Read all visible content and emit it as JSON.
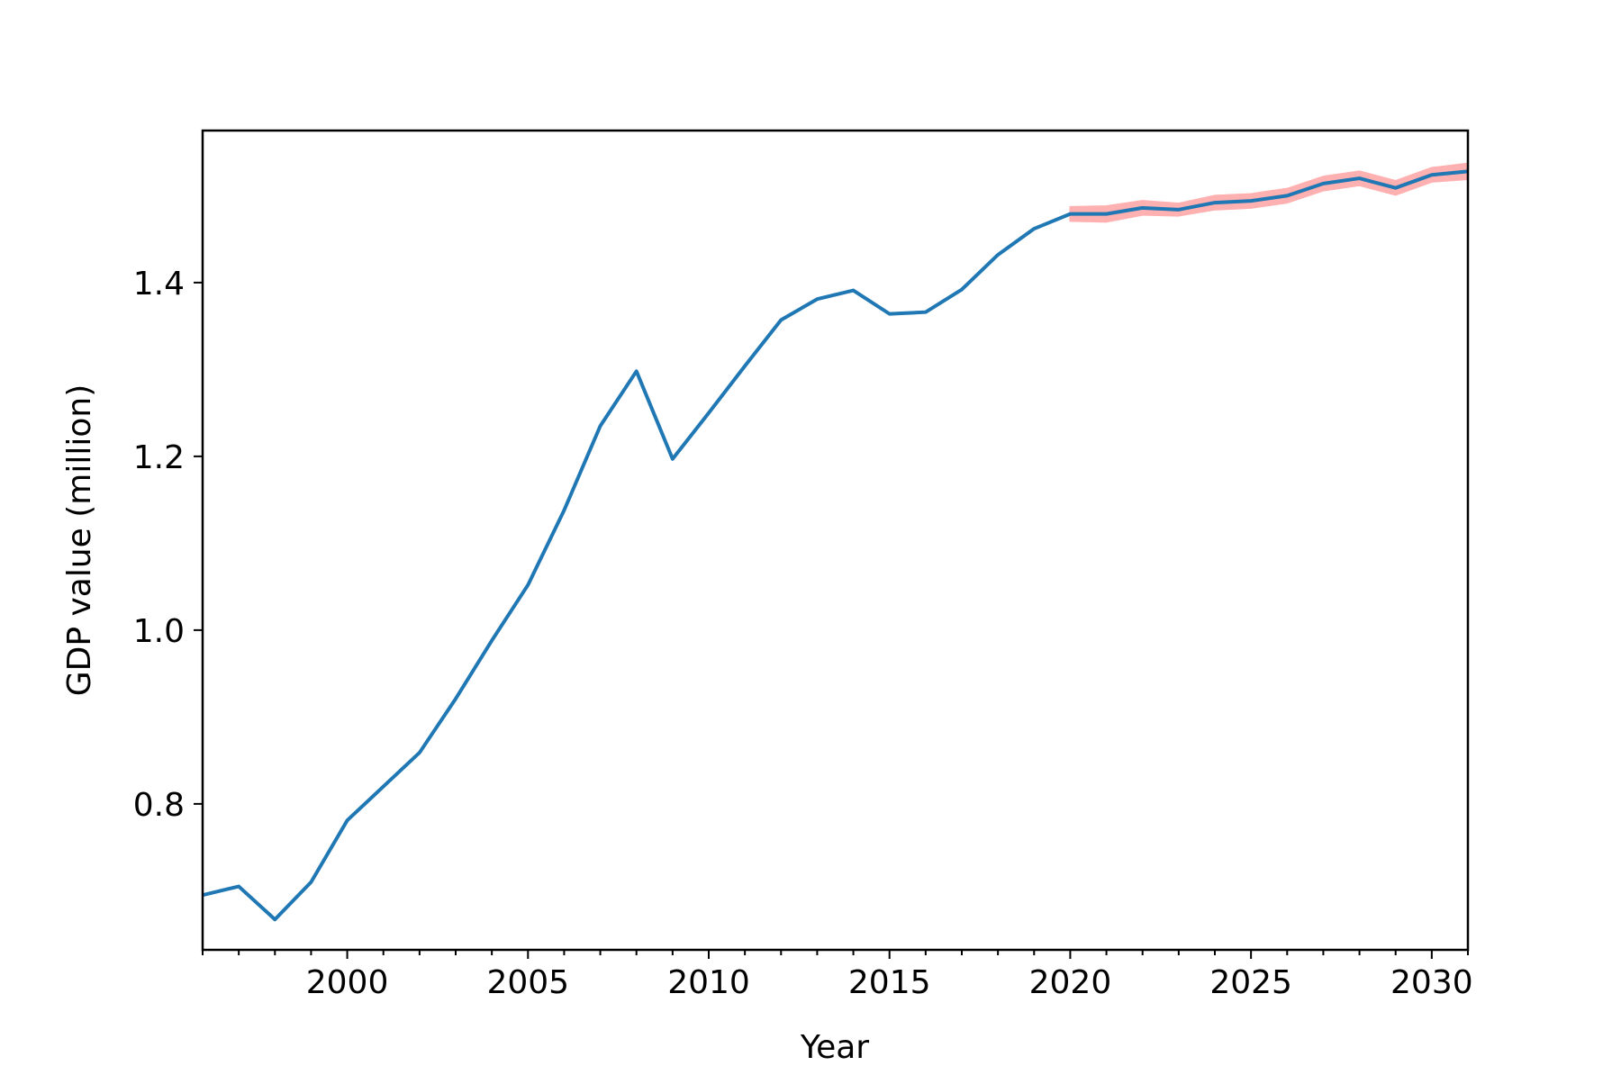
{
  "chart_data": {
    "type": "line",
    "title": "",
    "xlabel": "Year",
    "ylabel": "GDP value (million)",
    "xlim": [
      1996,
      2031
    ],
    "ylim": [
      0.632,
      1.575
    ],
    "xticks": [
      2000,
      2005,
      2010,
      2015,
      2020,
      2025,
      2030
    ],
    "yticks": [
      0.8,
      1.0,
      1.2,
      1.4
    ],
    "ytick_labels": [
      "0.8",
      "1.0",
      "1.2",
      "1.4"
    ],
    "grid": false,
    "legend": "none",
    "series": [
      {
        "color": "#1f77b4",
        "x": [
          1996,
          1997,
          1998,
          1999,
          2000,
          2001,
          2002,
          2003,
          2004,
          2005,
          2006,
          2007,
          2008,
          2009,
          2010,
          2011,
          2012,
          2013,
          2014,
          2015,
          2016,
          2017,
          2018,
          2019,
          2020,
          2021,
          2022,
          2023,
          2024,
          2025,
          2026,
          2027,
          2028,
          2029,
          2030,
          2031
        ],
        "y": [
          0.695,
          0.705,
          0.667,
          0.71,
          0.781,
          0.82,
          0.859,
          0.921,
          0.988,
          1.052,
          1.138,
          1.235,
          1.298,
          1.197,
          1.25,
          1.304,
          1.357,
          1.381,
          1.391,
          1.364,
          1.366,
          1.392,
          1.432,
          1.462,
          1.479,
          1.479,
          1.486,
          1.484,
          1.492,
          1.494,
          1.5,
          1.514,
          1.52,
          1.509,
          1.524,
          1.528
        ]
      }
    ],
    "band": {
      "color": "#ffb0b0",
      "x": [
        2020,
        2021,
        2022,
        2023,
        2024,
        2025,
        2026,
        2027,
        2028,
        2029,
        2030,
        2031
      ],
      "y_low": [
        1.471,
        1.47,
        1.478,
        1.477,
        1.484,
        1.486,
        1.492,
        1.506,
        1.512,
        1.501,
        1.516,
        1.519
      ],
      "y_high": [
        1.487,
        1.488,
        1.494,
        1.491,
        1.5,
        1.502,
        1.508,
        1.522,
        1.528,
        1.517,
        1.532,
        1.537
      ]
    }
  }
}
